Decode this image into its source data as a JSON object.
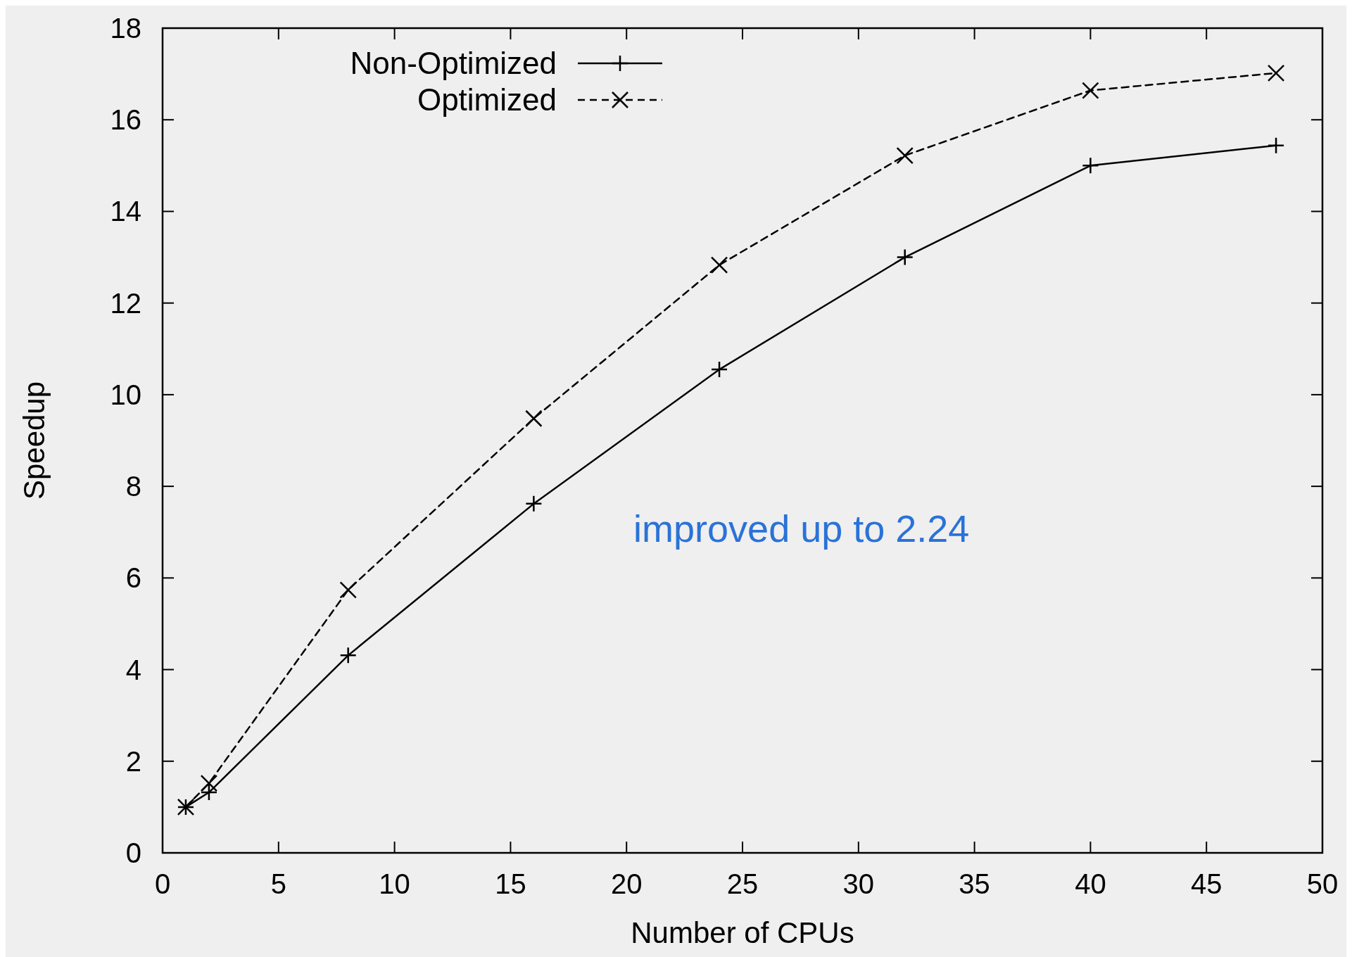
{
  "chart_data": {
    "type": "line",
    "xlabel": "Number of CPUs",
    "ylabel": "Speedup",
    "x": [
      1,
      2,
      8,
      16,
      24,
      32,
      40,
      48
    ],
    "series": [
      {
        "name": "Non-Optimized",
        "color": "#000000",
        "marker": "cross",
        "line_style": "solid",
        "values": [
          1.0,
          1.32,
          4.31,
          7.62,
          10.55,
          13.0,
          15.0,
          15.44
        ]
      },
      {
        "name": "Optimized",
        "color": "#000000",
        "marker": "cross",
        "line_style": "dashed",
        "values": [
          1.0,
          1.52,
          5.74,
          9.48,
          12.83,
          15.22,
          16.64,
          17.02
        ]
      }
    ],
    "xlim": [
      0,
      50
    ],
    "xticks": [
      0,
      5,
      10,
      15,
      20,
      25,
      30,
      35,
      40,
      45,
      50
    ],
    "ylim": [
      0,
      18
    ],
    "yticks": [
      0,
      2,
      4,
      6,
      8,
      10,
      12,
      14,
      16,
      18
    ],
    "annotations": [
      "improved up to 2.24"
    ],
    "legend": "top left",
    "grid": false
  }
}
